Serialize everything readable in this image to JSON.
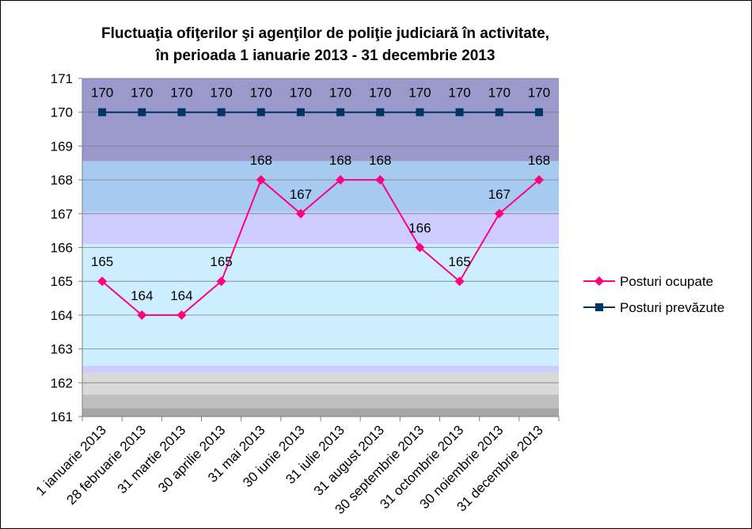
{
  "chart_data": {
    "type": "line",
    "title_line1": "Fluctuaţia ofiţerilor şi agenţilor de poliţie judiciară în activitate,",
    "title_line2": "în perioada 1 ianuarie 2013 - 31 decembrie 2013",
    "categories": [
      "1 ianuarie 2013",
      "28 februarie 2013",
      "31 martie 2013",
      "30 aprilie 2013",
      "31 mai 2013",
      "30 iunie 2013",
      "31 iulie 2013",
      "31 august 2013",
      "30 septembrie 2013",
      "31 octombrie 2013",
      "30 noiembrie 2013",
      "31 decembrie 2013"
    ],
    "series": [
      {
        "name": "Posturi ocupate",
        "values": [
          165,
          164,
          164,
          165,
          168,
          167,
          168,
          168,
          166,
          165,
          167,
          168
        ],
        "color": "#ff0080",
        "marker": "diamond"
      },
      {
        "name": "Posturi prevăzute",
        "values": [
          170,
          170,
          170,
          170,
          170,
          170,
          170,
          170,
          170,
          170,
          170,
          170
        ],
        "color": "#003366",
        "marker": "square"
      }
    ],
    "ylim": [
      161,
      171
    ],
    "yticks": [
      161,
      162,
      163,
      164,
      165,
      166,
      167,
      168,
      169,
      170,
      171
    ],
    "legend_position": "right",
    "grid": true,
    "background_colors": [
      "#9999cc",
      "#a6caf0",
      "#ccccff",
      "#cceeff",
      "#d9d9d9",
      "#bfbfbf",
      "#a6a6a6"
    ]
  }
}
